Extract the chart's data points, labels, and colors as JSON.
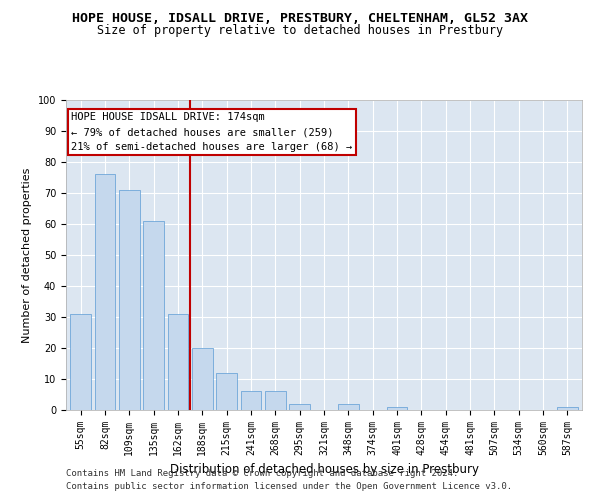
{
  "title": "HOPE HOUSE, IDSALL DRIVE, PRESTBURY, CHELTENHAM, GL52 3AX",
  "subtitle": "Size of property relative to detached houses in Prestbury",
  "xlabel": "Distribution of detached houses by size in Prestbury",
  "ylabel": "Number of detached properties",
  "categories": [
    "55sqm",
    "82sqm",
    "109sqm",
    "135sqm",
    "162sqm",
    "188sqm",
    "215sqm",
    "241sqm",
    "268sqm",
    "295sqm",
    "321sqm",
    "348sqm",
    "374sqm",
    "401sqm",
    "428sqm",
    "454sqm",
    "481sqm",
    "507sqm",
    "534sqm",
    "560sqm",
    "587sqm"
  ],
  "values": [
    31,
    76,
    71,
    61,
    31,
    20,
    12,
    6,
    6,
    2,
    0,
    2,
    0,
    1,
    0,
    0,
    0,
    0,
    0,
    0,
    1
  ],
  "bar_color": "#c5d8ed",
  "bar_edgecolor": "#5b9bd5",
  "bg_color": "#dce6f1",
  "grid_color": "#ffffff",
  "vline_x": 4.5,
  "vline_color": "#c00000",
  "annotation_line1": "HOPE HOUSE IDSALL DRIVE: 174sqm",
  "annotation_line2": "← 79% of detached houses are smaller (259)",
  "annotation_line3": "21% of semi-detached houses are larger (68) →",
  "annotation_box_color": "#c00000",
  "footer_line1": "Contains HM Land Registry data © Crown copyright and database right 2024.",
  "footer_line2": "Contains public sector information licensed under the Open Government Licence v3.0.",
  "ylim": [
    0,
    100
  ],
  "title_fontsize": 9.5,
  "subtitle_fontsize": 8.5,
  "xlabel_fontsize": 8.5,
  "ylabel_fontsize": 8,
  "tick_fontsize": 7,
  "annotation_fontsize": 7.5,
  "footer_fontsize": 6.5
}
